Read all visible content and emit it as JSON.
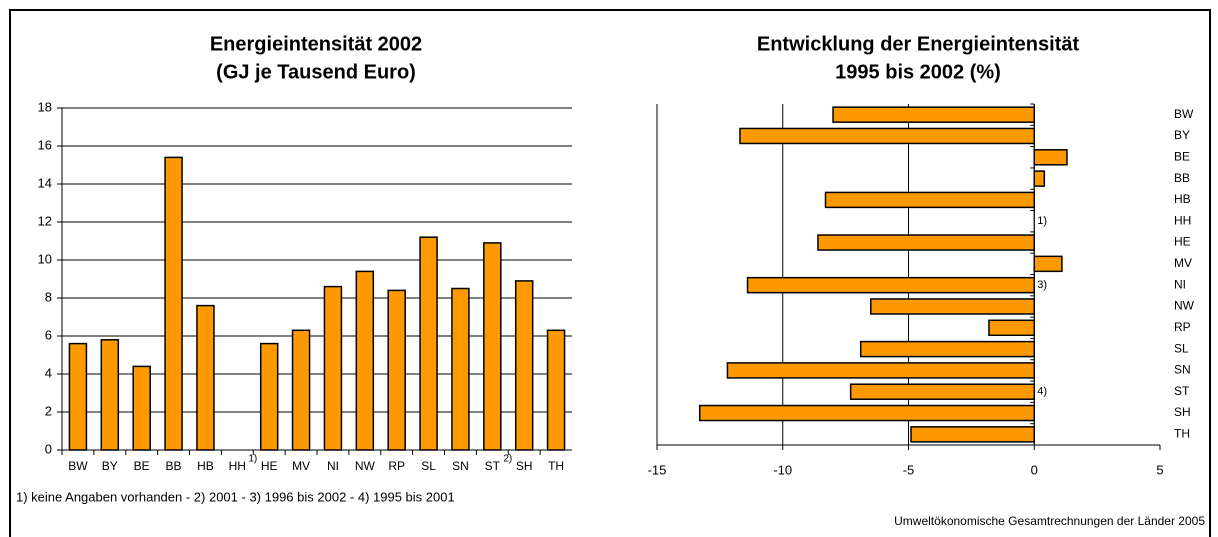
{
  "chart_data": [
    {
      "type": "bar",
      "title": [
        "Energieintensität 2002",
        "(GJ je Tausend Euro)"
      ],
      "categories": [
        "BW",
        "BY",
        "BE",
        "BB",
        "HB",
        "HH",
        "HE",
        "MV",
        "NI",
        "NW",
        "RP",
        "SL",
        "SN",
        "ST",
        "SH",
        "TH"
      ],
      "category_notes": [
        null,
        null,
        null,
        null,
        null,
        "1)",
        null,
        null,
        null,
        null,
        null,
        null,
        null,
        "2)",
        null,
        null
      ],
      "values": [
        5.6,
        5.8,
        4.4,
        15.4,
        7.6,
        null,
        5.6,
        6.3,
        8.6,
        9.4,
        8.4,
        11.2,
        8.5,
        10.9,
        8.9,
        6.3
      ],
      "color": "#ff9900",
      "ylim": [
        0,
        18
      ],
      "yticks": [
        0,
        2,
        4,
        6,
        8,
        10,
        12,
        14,
        16,
        18
      ],
      "grid": true,
      "footnote": "1) keine Angaben vorhanden - 2) 2001 - 3) 1996 bis 2002 - 4) 1995 bis 2001"
    },
    {
      "type": "barh",
      "title": [
        "Entwicklung der Energieintensität",
        "1995 bis 2002 (%)"
      ],
      "categories": [
        "BW",
        "BY",
        "BE",
        "BB",
        "HB",
        "HH",
        "HE",
        "MV",
        "NI",
        "NW",
        "RP",
        "SL",
        "SN",
        "ST",
        "SH",
        "TH"
      ],
      "category_notes": [
        null,
        null,
        null,
        null,
        null,
        "1)",
        null,
        null,
        "3)",
        null,
        null,
        null,
        null,
        "4)",
        null,
        null
      ],
      "values": [
        -8.0,
        -11.7,
        1.3,
        0.4,
        -8.3,
        null,
        -8.6,
        1.1,
        -11.4,
        -6.5,
        -1.8,
        -6.9,
        -12.2,
        -7.3,
        -13.3,
        -4.9
      ],
      "color": "#ff9900",
      "xlim": [
        -15,
        5
      ],
      "xticks": [
        -15,
        -10,
        -5,
        0,
        5
      ],
      "grid": true,
      "source": "Umweltökonomische Gesamtrechnungen der Länder 2005"
    }
  ]
}
